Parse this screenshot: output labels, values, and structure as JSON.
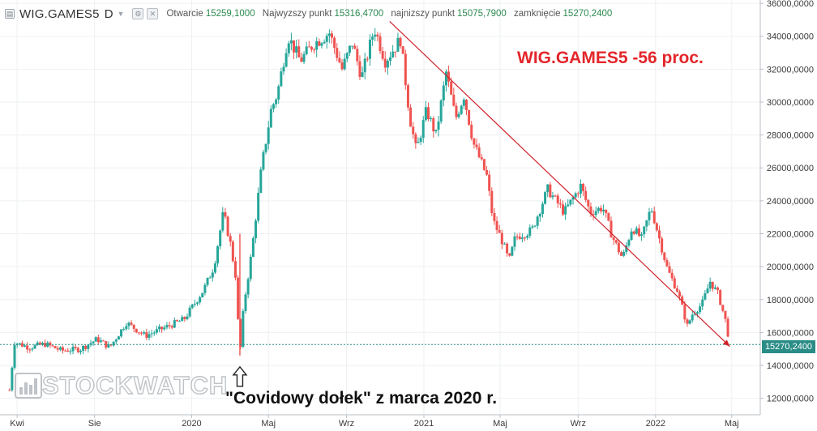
{
  "header": {
    "symbol": "WIG.GAMES5",
    "timeframe": "D",
    "caret_icon": "chevron-down-icon",
    "buttons": [
      "settings-icon",
      "close-icon"
    ],
    "ohlc": [
      {
        "label": "Otwarcie",
        "value": "15259,1000"
      },
      {
        "label": "Najwyzszy punkt",
        "value": "15316,4700"
      },
      {
        "label": "najnizszy punkt",
        "value": "15075,7900"
      },
      {
        "label": "zamknięcie",
        "value": "15270,2400"
      }
    ]
  },
  "overlay": {
    "title": "WIG.GAMES5 -56 proc.",
    "annotation": "\"Covidowy dołek\" z marca 2020 r.",
    "logo_text": "STOCKWATCH",
    "arrow_icon": "up-arrow-icon"
  },
  "last_price_label": "15270,2400",
  "colors": {
    "up": "#26a69a",
    "down": "#ef5350",
    "trend": "#d0202a",
    "last": "#2a8c86",
    "title": "#e3262b"
  },
  "chart_data": {
    "type": "candlestick",
    "title": "WIG.GAMES5 -56 proc.",
    "y_ticks": [
      "12000,0000",
      "14000,0000",
      "16000,0000",
      "18000,0000",
      "20000,0000",
      "22000,0000",
      "24000,0000",
      "26000,0000",
      "28000,0000",
      "30000,0000",
      "32000,0000",
      "34000,0000",
      "36000,0000"
    ],
    "ylim": [
      11000,
      36200
    ],
    "x_tick_labels": [
      "Kwi",
      "Sie",
      "2020",
      "Maj",
      "Wrz",
      "2021",
      "Maj",
      "Wrz",
      "2022",
      "Maj"
    ],
    "x_tick_dates": [
      "2019-04-01",
      "2019-08-01",
      "2020-01-01",
      "2020-05-01",
      "2020-09-01",
      "2021-01-01",
      "2021-05-01",
      "2021-09-01",
      "2022-01-01",
      "2022-05-01"
    ],
    "x_range": [
      "2019-03-05",
      "2022-06-15"
    ],
    "price_path": [
      [
        "2019-03-20",
        12500
      ],
      [
        "2019-03-28",
        15400
      ],
      [
        "2019-04-20",
        15100
      ],
      [
        "2019-05-15",
        15300
      ],
      [
        "2019-06-10",
        14900
      ],
      [
        "2019-07-10",
        15000
      ],
      [
        "2019-08-05",
        15600
      ],
      [
        "2019-08-25",
        15100
      ],
      [
        "2019-09-20",
        16600
      ],
      [
        "2019-10-20",
        15800
      ],
      [
        "2019-11-20",
        16300
      ],
      [
        "2019-12-20",
        16800
      ],
      [
        "2020-01-20",
        18600
      ],
      [
        "2020-02-05",
        20000
      ],
      [
        "2020-02-20",
        23300
      ],
      [
        "2020-03-02",
        21400
      ],
      [
        "2020-03-10",
        19500
      ],
      [
        "2020-03-17",
        14600
      ],
      [
        "2020-03-23",
        17600
      ],
      [
        "2020-04-05",
        21000
      ],
      [
        "2020-04-20",
        26000
      ],
      [
        "2020-05-05",
        29500
      ],
      [
        "2020-05-15",
        30500
      ],
      [
        "2020-06-01",
        34000
      ],
      [
        "2020-06-20",
        32500
      ],
      [
        "2020-07-10",
        33500
      ],
      [
        "2020-08-05",
        34200
      ],
      [
        "2020-08-25",
        32000
      ],
      [
        "2020-09-10",
        33600
      ],
      [
        "2020-09-25",
        31500
      ],
      [
        "2020-10-15",
        34500
      ],
      [
        "2020-11-01",
        32500
      ],
      [
        "2020-11-25",
        33800
      ],
      [
        "2020-12-10",
        29000
      ],
      [
        "2020-12-20",
        27000
      ],
      [
        "2021-01-05",
        29500
      ],
      [
        "2021-01-20",
        28000
      ],
      [
        "2021-02-05",
        31800
      ],
      [
        "2021-02-20",
        29000
      ],
      [
        "2021-03-05",
        30400
      ],
      [
        "2021-03-20",
        27500
      ],
      [
        "2021-04-10",
        25500
      ],
      [
        "2021-04-20",
        22800
      ],
      [
        "2021-05-05",
        21500
      ],
      [
        "2021-05-15",
        20300
      ],
      [
        "2021-05-25",
        21800
      ],
      [
        "2021-06-20",
        22200
      ],
      [
        "2021-07-15",
        24700
      ],
      [
        "2021-08-10",
        23300
      ],
      [
        "2021-09-05",
        24900
      ],
      [
        "2021-09-20",
        23300
      ],
      [
        "2021-10-10",
        23600
      ],
      [
        "2021-10-25",
        21800
      ],
      [
        "2021-11-10",
        20500
      ],
      [
        "2021-11-25",
        22400
      ],
      [
        "2021-12-10",
        21700
      ],
      [
        "2021-12-25",
        23600
      ],
      [
        "2022-01-05",
        22000
      ],
      [
        "2022-01-20",
        19800
      ],
      [
        "2022-02-05",
        18500
      ],
      [
        "2022-02-20",
        16400
      ],
      [
        "2022-03-01",
        17200
      ],
      [
        "2022-03-15",
        17700
      ],
      [
        "2022-03-28",
        19100
      ],
      [
        "2022-04-10",
        18300
      ],
      [
        "2022-04-22",
        16600
      ],
      [
        "2022-04-28",
        15270
      ]
    ],
    "trendline": [
      [
        "2020-11-08",
        34900
      ],
      [
        "2022-04-28",
        15150
      ]
    ],
    "last_price": 15270.24,
    "marker": {
      "date": "2020-03-17",
      "label": "\"Covidowy dołek\" z marca 2020 r."
    }
  }
}
